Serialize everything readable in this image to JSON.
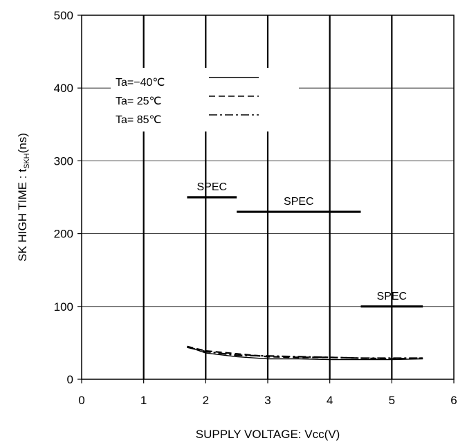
{
  "chart_data": {
    "type": "line",
    "title": "",
    "xlabel": "SUPPLY VOLTAGE: Vcc(V)",
    "ylabel_main": "SK HIGH TIME : t",
    "ylabel_sub": "SKH",
    "ylabel_unit": "(ns)",
    "xlim": [
      0,
      6
    ],
    "ylim": [
      0,
      500
    ],
    "x_ticks": [
      "0",
      "1",
      "2",
      "3",
      "4",
      "5",
      "6"
    ],
    "y_ticks": [
      "0",
      "100",
      "200",
      "300",
      "400",
      "500"
    ],
    "grid": true,
    "legend_placement": "top-left",
    "series": [
      {
        "name": "Ta=−40℃",
        "style": "solid",
        "x": [
          1.7,
          2.0,
          2.5,
          3.0,
          3.5,
          4.0,
          4.5,
          5.0,
          5.5
        ],
        "y": [
          45,
          36,
          31,
          28,
          28,
          27,
          27,
          27,
          28
        ]
      },
      {
        "name": "Ta= 25℃",
        "style": "dashed",
        "x": [
          1.7,
          2.0,
          2.5,
          3.0,
          3.5,
          4.0,
          4.5,
          5.0,
          5.5
        ],
        "y": [
          45,
          39,
          35,
          31,
          30,
          30,
          29,
          28,
          29
        ]
      },
      {
        "name": "Ta= 85℃",
        "style": "dashdot",
        "x": [
          1.7,
          2.0,
          2.5,
          3.0,
          3.5,
          4.0,
          4.5,
          5.0,
          5.5
        ],
        "y": [
          44,
          38,
          33,
          32,
          31,
          30,
          29,
          29,
          29
        ]
      }
    ],
    "spec_lines": [
      {
        "label": "SPEC",
        "x": [
          1.7,
          2.5
        ],
        "y": 250
      },
      {
        "label": "SPEC",
        "x": [
          2.5,
          4.5
        ],
        "y": 230
      },
      {
        "label": "SPEC",
        "x": [
          4.5,
          5.5
        ],
        "y": 100
      }
    ]
  }
}
